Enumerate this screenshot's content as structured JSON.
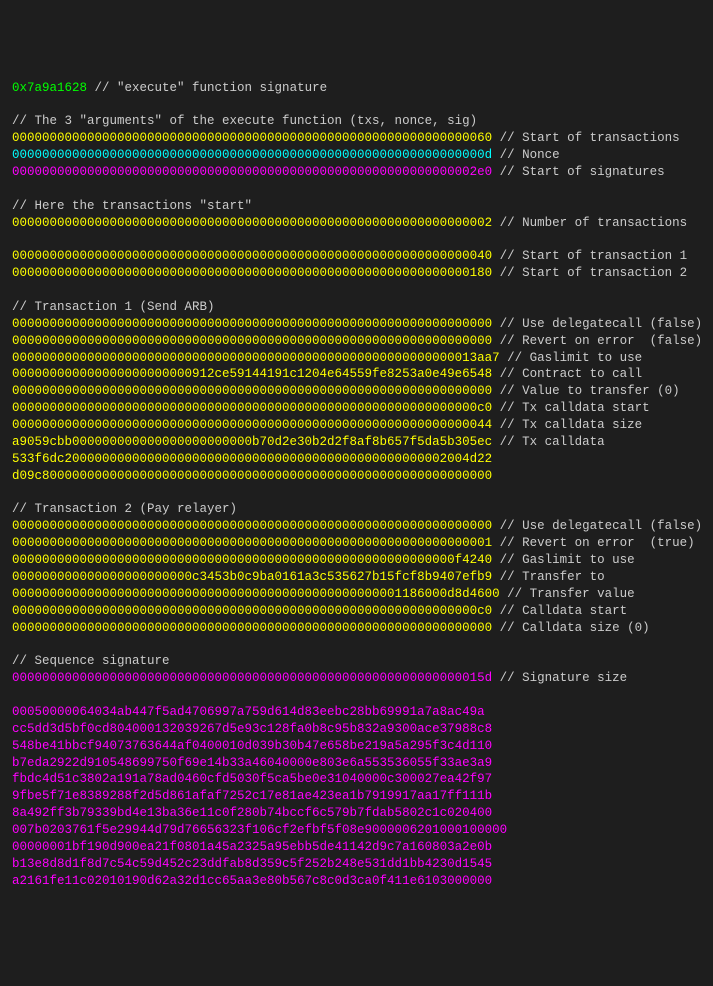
{
  "colors": {
    "green": "#00ff00",
    "yellow": "#ffff00",
    "cyan": "#00ffff",
    "magenta": "#ff00ff",
    "gray": "#aaaaaa",
    "comment": "#cccccc",
    "background": "#1e1e1e"
  },
  "fn_sig": {
    "hex": "0x7a9a1628",
    "comment": "// \"execute\" function signature"
  },
  "section1": {
    "title": "// The 3 \"arguments\" of the execute function (txs, nonce, sig)",
    "lines": [
      {
        "hex": "0000000000000000000000000000000000000000000000000000000000000060",
        "color": "yellow",
        "comment": "// Start of transactions"
      },
      {
        "hex": "000000000000000000000000000000000000000000000000000000000000000d",
        "color": "cyan",
        "comment": "// Nonce"
      },
      {
        "hex": "00000000000000000000000000000000000000000000000000000000000002e0",
        "color": "magenta",
        "comment": "// Start of signatures"
      }
    ]
  },
  "section2": {
    "title": "// Here the transactions \"start\"",
    "lines": [
      {
        "hex": "0000000000000000000000000000000000000000000000000000000000000002",
        "color": "yellow",
        "comment": "// Number of transactions"
      }
    ]
  },
  "section3": {
    "lines": [
      {
        "hex": "0000000000000000000000000000000000000000000000000000000000000040",
        "color": "yellow",
        "comment": "// Start of transaction 1"
      },
      {
        "hex": "0000000000000000000000000000000000000000000000000000000000000180",
        "color": "yellow",
        "comment": "// Start of transaction 2"
      }
    ]
  },
  "section4": {
    "title": "// Transaction 1 (Send ARB)",
    "lines": [
      {
        "hex": "0000000000000000000000000000000000000000000000000000000000000000",
        "color": "yellow",
        "comment": "// Use delegatecall (false)"
      },
      {
        "hex": "0000000000000000000000000000000000000000000000000000000000000000",
        "color": "yellow",
        "comment": "// Revert on error  (false)"
      },
      {
        "hex": "00000000000000000000000000000000000000000000000000000000000013aa7",
        "color": "yellow",
        "comment": "// Gaslimit to use"
      },
      {
        "hex": "000000000000000000000000912ce59144191c1204e64559fe8253a0e49e6548",
        "color": "yellow",
        "comment": "// Contract to call"
      },
      {
        "hex": "0000000000000000000000000000000000000000000000000000000000000000",
        "color": "yellow",
        "comment": "// Value to transfer (0)"
      },
      {
        "hex": "00000000000000000000000000000000000000000000000000000000000000c0",
        "color": "yellow",
        "comment": "// Tx calldata start"
      },
      {
        "hex": "0000000000000000000000000000000000000000000000000000000000000044",
        "color": "yellow",
        "comment": "// Tx calldata size"
      },
      {
        "hex": "a9059cbb000000000000000000000000b70d2e30b2d2f8af8b657f5da5b305ec",
        "color": "yellow",
        "comment": "// Tx calldata"
      },
      {
        "hex": "533f6dc200000000000000000000000000000000000000000000000002004d22",
        "color": "yellow",
        "comment": ""
      },
      {
        "hex": "d09c800000000000000000000000000000000000000000000000000000000000",
        "color": "yellow",
        "comment": ""
      }
    ]
  },
  "section5": {
    "title": "// Transaction 2 (Pay relayer)",
    "lines": [
      {
        "hex": "0000000000000000000000000000000000000000000000000000000000000000",
        "color": "yellow",
        "comment": "// Use delegatecall (false)"
      },
      {
        "hex": "0000000000000000000000000000000000000000000000000000000000000001",
        "color": "yellow",
        "comment": "// Revert on error  (true)"
      },
      {
        "hex": "00000000000000000000000000000000000000000000000000000000000f4240",
        "color": "yellow",
        "comment": "// Gaslimit to use"
      },
      {
        "hex": "000000000000000000000000c3453b0c9ba0161a3c535627b15fcf8b9407efb9",
        "color": "yellow",
        "comment": "// Transfer to"
      },
      {
        "hex": "0000000000000000000000000000000000000000000000000001186000d8d4600",
        "color": "yellow",
        "comment": "// Transfer value"
      },
      {
        "hex": "00000000000000000000000000000000000000000000000000000000000000c0",
        "color": "yellow",
        "comment": "// Calldata start"
      },
      {
        "hex": "0000000000000000000000000000000000000000000000000000000000000000",
        "color": "yellow",
        "comment": "// Calldata size (0)"
      }
    ]
  },
  "section6": {
    "title": "// Sequence signature",
    "lines": [
      {
        "hex": "000000000000000000000000000000000000000000000000000000000000015d",
        "color": "magenta",
        "comment": "// Signature size"
      }
    ],
    "sig_lines": [
      "00050000064034ab447f5ad4706997a759d614d83eebc28bb69991a7a8ac49a",
      "cc5dd3d5bf0cd804000132039267d5e93c128fa0b8c95b832a9300ace37988c8",
      "548be41bbcf94073763644af0400010d039b30b47e658be219a5a295f3c4d110",
      "b7eda2922d910548699750f69e14b33a46040000e803e6a553536055f33ae3a9",
      "fbdc4d51c3802a191a78ad0460cfd5030f5ca5be0e31040000c300027ea42f97",
      "9fbe5f71e8389288f2d5d861afaf7252c17e81ae423ea1b7919917aa17ff111b",
      "8a492ff3b79339bd4e13ba36e11c0f280b74bccf6c579b7fdab5802c1c020400",
      "007b0203761f5e29944d79d76656323f106cf2efbf5f08e9000006201000100000",
      "00000001bf190d900ea21f0801a45a2325a95ebb5de41142d9c7a160803a2e0b",
      "b13e8d8d1f8d7c54c59d452c23ddfab8d359c5f252b248e531dd1bb4230d1545",
      "a2161fe11c02010190d62a32d1cc65aa3e80b567c8c0d3ca0f411e6103000000"
    ]
  }
}
